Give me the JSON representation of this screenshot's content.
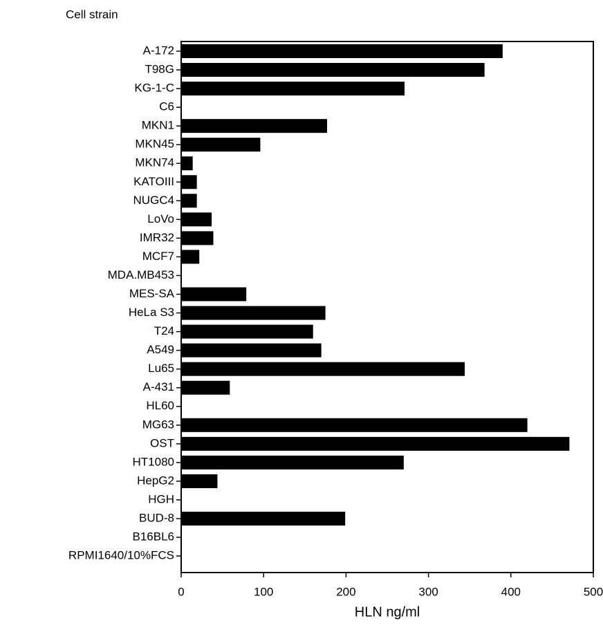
{
  "chart_data": {
    "type": "barh",
    "title": "Cell strain",
    "x_label": "HLN ng/ml",
    "categories": [
      "A-172",
      "T98G",
      "KG-1-C",
      "C6",
      "MKN1",
      "MKN45",
      "MKN74",
      "KATOIII",
      "NUGC4",
      "LoVo",
      "IMR32",
      "MCF7",
      "MDA.MB453",
      "MES-SA",
      "HeLa S3",
      "T24",
      "A549",
      "Lu65",
      "A-431",
      "HL60",
      "MG63",
      "OST",
      "HT1080",
      "HepG2",
      "HGH",
      "BUD-8",
      "B16BL6",
      "RPMI1640/10%FCS"
    ],
    "values": [
      390,
      368,
      271,
      0,
      177,
      96,
      14,
      19,
      19,
      37,
      39,
      22,
      0,
      79,
      175,
      160,
      170,
      344,
      59,
      0,
      420,
      471,
      270,
      44,
      0,
      199,
      0,
      0
    ],
    "color": "#000000",
    "xlim": [
      0,
      500
    ],
    "xticks": [
      0,
      100,
      200,
      300,
      400,
      500
    ]
  }
}
